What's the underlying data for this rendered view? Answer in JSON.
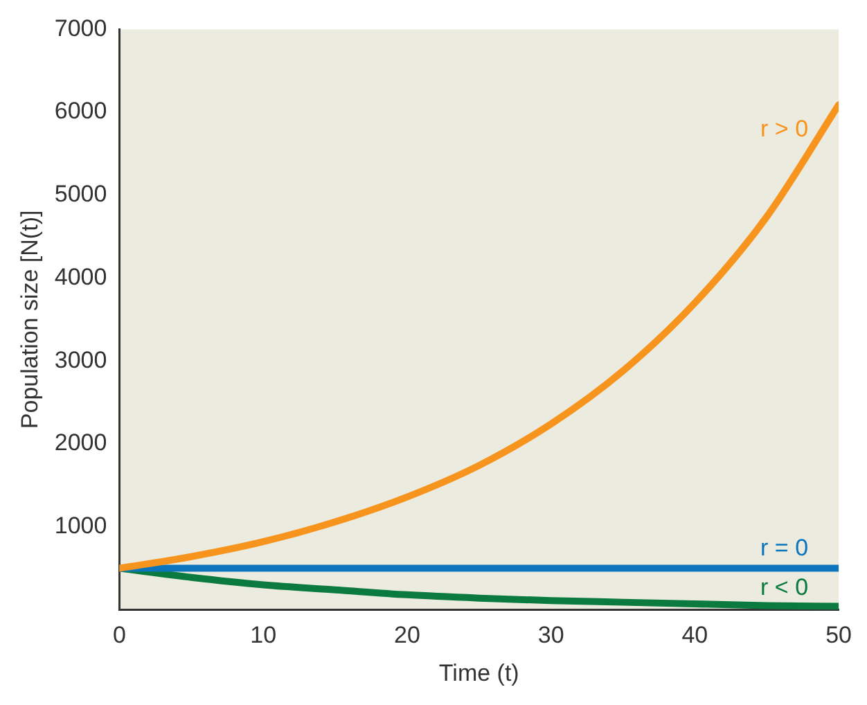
{
  "chart_data": {
    "type": "line",
    "xlabel": "Time (t)",
    "ylabel": "Population size [N(t)]",
    "x": [
      0,
      5,
      10,
      15,
      20,
      25,
      30,
      35,
      40,
      45,
      50
    ],
    "series": [
      {
        "name": "r > 0",
        "color": "#f7941d",
        "values": [
          500,
          640,
          820,
          1060,
          1360,
          1740,
          2240,
          2880,
          3700,
          4740,
          6090
        ]
      },
      {
        "name": "r = 0",
        "color": "#0a75bc",
        "values": [
          500,
          500,
          500,
          500,
          500,
          500,
          500,
          500,
          500,
          500,
          500
        ]
      },
      {
        "name": "r < 0",
        "color": "#0b7a3e",
        "values": [
          500,
          390,
          300,
          240,
          180,
          140,
          110,
          90,
          70,
          50,
          40
        ]
      }
    ],
    "xlim": [
      0,
      50
    ],
    "xticks": [
      0,
      10,
      20,
      30,
      40,
      50
    ],
    "ylim": [
      0,
      7000
    ],
    "yticks": [
      1000,
      2000,
      3000,
      4000,
      5000,
      6000,
      7000
    ],
    "grid": false,
    "legend": false,
    "marker": "none",
    "line_style": "solid"
  }
}
